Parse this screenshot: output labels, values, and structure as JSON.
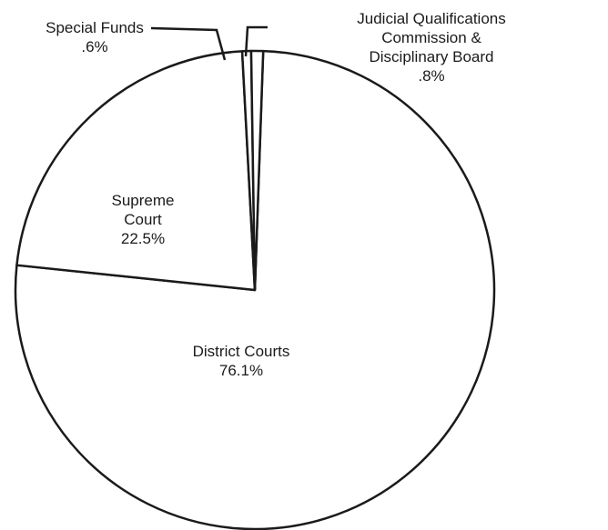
{
  "chart_data": {
    "type": "pie",
    "categories": [
      "District Courts",
      "Supreme\nCourt",
      "Special Funds",
      "Judicial Qualifications\nCommission & Disciplinary Board"
    ],
    "values": [
      76.1,
      22.5,
      0.6,
      0.8
    ],
    "value_labels": [
      "76.1%",
      "22.5%",
      ".6%",
      ".8%"
    ],
    "color": "#ffffff"
  }
}
